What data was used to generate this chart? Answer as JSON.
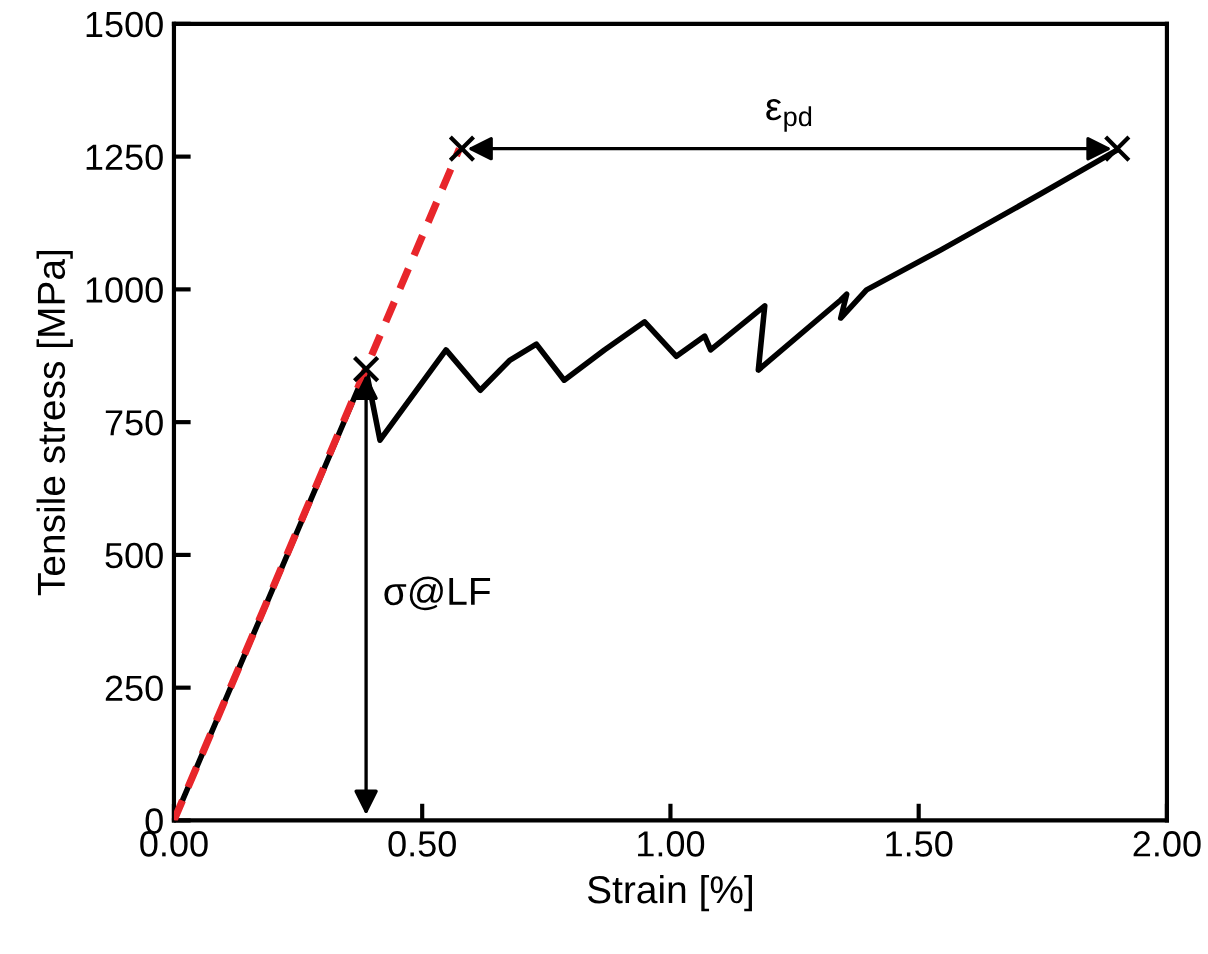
{
  "chart_data": {
    "type": "line",
    "xlabel": "Strain [%]",
    "ylabel": "Tensile stress [MPa]",
    "xlim": [
      0,
      2
    ],
    "ylim": [
      0,
      1500
    ],
    "xticks": [
      {
        "value": 0,
        "label": "0.00"
      },
      {
        "value": 0.5,
        "label": "0.50"
      },
      {
        "value": 1,
        "label": "1.00"
      },
      {
        "value": 1.5,
        "label": "1.50"
      },
      {
        "value": 2,
        "label": "2.00"
      }
    ],
    "yticks": [
      0,
      250,
      500,
      750,
      1000,
      1250,
      1500
    ],
    "grid": false,
    "legend": false,
    "series": [
      {
        "color": "#000000",
        "line_style": "solid",
        "x": [
          0,
          0.387,
          0.415,
          0.548,
          0.617,
          0.677,
          0.73,
          0.786,
          0.867,
          0.948,
          1.012,
          1.069,
          1.081,
          1.19,
          1.177,
          1.343,
          1.355,
          1.343,
          1.395,
          1.544,
          1.746,
          1.899
        ],
        "values": [
          0,
          848,
          716,
          886,
          810,
          867,
          897,
          829,
          886,
          939,
          874,
          912,
          886,
          969,
          848,
          980,
          991,
          946,
          999,
          1074,
          1180,
          1262
        ]
      },
      {
        "type": "line",
        "color": "#e8262b",
        "line_style": "dashed",
        "x": [
          0,
          0.575
        ],
        "values": [
          0,
          1265
        ]
      },
      {
        "type": "scatter",
        "color": "#000000",
        "marker": "cross",
        "x": [
          0.387,
          0.58,
          1.9
        ],
        "values": [
          850,
          1265,
          1265
        ]
      }
    ],
    "annotations": [
      "ε$_{pd}$",
      "σ@LF"
    ]
  }
}
